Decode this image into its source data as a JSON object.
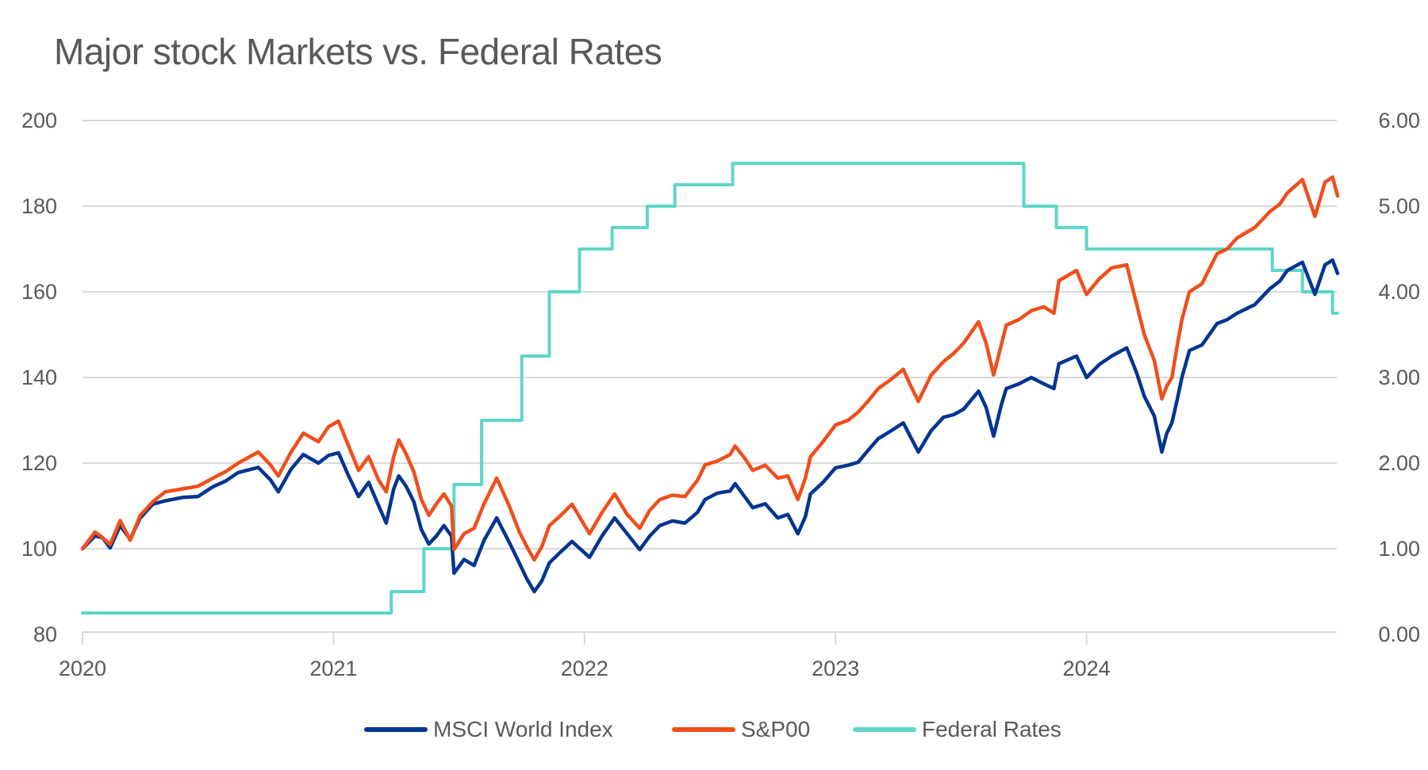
{
  "chart_data": {
    "type": "line",
    "title": "Major stock Markets vs. Federal Rates",
    "xlabel": "",
    "ylabel": "",
    "y2label": "",
    "xlim": [
      2020.0,
      2025.0
    ],
    "ylim": [
      80,
      200
    ],
    "y2lim": [
      0,
      6
    ],
    "grid": true,
    "legend_position": "bottom",
    "x_ticks": [
      {
        "value": 2020,
        "label": "2020"
      },
      {
        "value": 2021,
        "label": "2021"
      },
      {
        "value": 2022,
        "label": "2022"
      },
      {
        "value": 2023,
        "label": "2023"
      },
      {
        "value": 2024,
        "label": "2024"
      }
    ],
    "y_ticks": [
      {
        "value": 80,
        "label": "80"
      },
      {
        "value": 100,
        "label": "100"
      },
      {
        "value": 120,
        "label": "120"
      },
      {
        "value": 140,
        "label": "140"
      },
      {
        "value": 160,
        "label": "160"
      },
      {
        "value": 180,
        "label": "180"
      },
      {
        "value": 200,
        "label": "200"
      }
    ],
    "y2_ticks": [
      {
        "value": 0,
        "label": "0.00"
      },
      {
        "value": 1,
        "label": "1.00"
      },
      {
        "value": 2,
        "label": "2.00"
      },
      {
        "value": 3,
        "label": "3.00"
      },
      {
        "value": 4,
        "label": "4.00"
      },
      {
        "value": 5,
        "label": "5.00"
      },
      {
        "value": 6,
        "label": "6.00"
      }
    ],
    "series": [
      {
        "name": "MSCI World Index",
        "axis": "left",
        "color": "#003591",
        "step": false,
        "points": [
          [
            2020.0,
            100.0
          ],
          [
            2020.05,
            103.0
          ],
          [
            2020.08,
            102.6
          ],
          [
            2020.11,
            100.2
          ],
          [
            2020.15,
            105.4
          ],
          [
            2020.19,
            102.2
          ],
          [
            2020.23,
            107.2
          ],
          [
            2020.28,
            110.4
          ],
          [
            2020.33,
            111.2
          ],
          [
            2020.4,
            112.0
          ],
          [
            2020.46,
            112.2
          ],
          [
            2020.52,
            114.5
          ],
          [
            2020.57,
            115.8
          ],
          [
            2020.62,
            117.8
          ],
          [
            2020.7,
            119.0
          ],
          [
            2020.75,
            116.0
          ],
          [
            2020.78,
            113.3
          ],
          [
            2020.83,
            118.5
          ],
          [
            2020.88,
            122.0
          ],
          [
            2020.94,
            120.0
          ],
          [
            2020.98,
            121.8
          ],
          [
            2021.02,
            122.4
          ],
          [
            2021.06,
            117.0
          ],
          [
            2021.1,
            112.2
          ],
          [
            2021.14,
            115.5
          ],
          [
            2021.18,
            110.0
          ],
          [
            2021.21,
            106.0
          ],
          [
            2021.24,
            114.0
          ],
          [
            2021.26,
            117.0
          ],
          [
            2021.29,
            114.5
          ],
          [
            2021.32,
            111.0
          ],
          [
            2021.35,
            104.5
          ],
          [
            2021.38,
            101.1
          ],
          [
            2021.41,
            103.0
          ],
          [
            2021.44,
            105.4
          ],
          [
            2021.47,
            103.0
          ],
          [
            2021.48,
            94.3
          ],
          [
            2021.52,
            97.5
          ],
          [
            2021.56,
            96.1
          ],
          [
            2021.6,
            102.0
          ],
          [
            2021.65,
            107.2
          ],
          [
            2021.7,
            101.5
          ],
          [
            2021.74,
            96.7
          ],
          [
            2021.77,
            93.0
          ],
          [
            2021.8,
            90.0
          ],
          [
            2021.83,
            92.5
          ],
          [
            2021.86,
            96.7
          ],
          [
            2021.9,
            99.0
          ],
          [
            2021.95,
            101.7
          ],
          [
            2022.02,
            98.0
          ],
          [
            2022.07,
            103.0
          ],
          [
            2022.12,
            107.2
          ],
          [
            2022.17,
            103.5
          ],
          [
            2022.22,
            99.8
          ],
          [
            2022.26,
            103.0
          ],
          [
            2022.3,
            105.4
          ],
          [
            2022.35,
            106.5
          ],
          [
            2022.4,
            106.0
          ],
          [
            2022.45,
            108.5
          ],
          [
            2022.48,
            111.5
          ],
          [
            2022.53,
            113.0
          ],
          [
            2022.58,
            113.5
          ],
          [
            2022.6,
            115.2
          ],
          [
            2022.64,
            112.0
          ],
          [
            2022.67,
            109.6
          ],
          [
            2022.72,
            110.5
          ],
          [
            2022.77,
            107.2
          ],
          [
            2022.81,
            108.0
          ],
          [
            2022.85,
            103.5
          ],
          [
            2022.88,
            107.5
          ],
          [
            2022.9,
            112.8
          ],
          [
            2022.95,
            115.5
          ],
          [
            2023.0,
            118.9
          ],
          [
            2023.05,
            119.5
          ],
          [
            2023.09,
            120.2
          ],
          [
            2023.13,
            123.0
          ],
          [
            2023.17,
            125.7
          ],
          [
            2023.22,
            127.5
          ],
          [
            2023.27,
            129.4
          ],
          [
            2023.3,
            126.0
          ],
          [
            2023.33,
            122.6
          ],
          [
            2023.38,
            127.5
          ],
          [
            2023.43,
            130.7
          ],
          [
            2023.47,
            131.3
          ],
          [
            2023.51,
            132.6
          ],
          [
            2023.57,
            136.8
          ],
          [
            2023.6,
            133.0
          ],
          [
            2023.63,
            126.3
          ],
          [
            2023.66,
            133.5
          ],
          [
            2023.68,
            137.4
          ],
          [
            2023.73,
            138.5
          ],
          [
            2023.78,
            140.0
          ],
          [
            2023.83,
            138.5
          ],
          [
            2023.87,
            137.4
          ],
          [
            2023.89,
            143.2
          ],
          [
            2023.96,
            145.0
          ],
          [
            2024.0,
            140.0
          ],
          [
            2024.05,
            143.0
          ],
          [
            2024.1,
            145.0
          ],
          [
            2024.16,
            146.9
          ],
          [
            2024.2,
            141.0
          ],
          [
            2024.23,
            135.6
          ],
          [
            2024.27,
            131.0
          ],
          [
            2024.3,
            122.6
          ],
          [
            2024.32,
            127.0
          ],
          [
            2024.34,
            129.4
          ],
          [
            2024.36,
            134.5
          ],
          [
            2024.38,
            140.0
          ],
          [
            2024.41,
            146.3
          ],
          [
            2024.46,
            147.6
          ],
          [
            2024.52,
            152.6
          ],
          [
            2024.56,
            153.5
          ],
          [
            2024.6,
            155.0
          ],
          [
            2024.67,
            157.0
          ],
          [
            2024.73,
            160.7
          ],
          [
            2024.77,
            162.5
          ],
          [
            2024.8,
            165.0
          ],
          [
            2024.86,
            166.9
          ],
          [
            2024.91,
            159.4
          ],
          [
            2024.95,
            166.3
          ],
          [
            2024.98,
            167.4
          ],
          [
            2025.0,
            164.3
          ]
        ]
      },
      {
        "name": "S&P00",
        "axis": "left",
        "color": "#F04E1B",
        "step": false,
        "points": [
          [
            2020.0,
            100.0
          ],
          [
            2020.05,
            103.9
          ],
          [
            2020.08,
            102.6
          ],
          [
            2020.11,
            101.0
          ],
          [
            2020.15,
            106.6
          ],
          [
            2020.19,
            102.0
          ],
          [
            2020.23,
            107.8
          ],
          [
            2020.28,
            111.0
          ],
          [
            2020.33,
            113.3
          ],
          [
            2020.4,
            114.0
          ],
          [
            2020.46,
            114.6
          ],
          [
            2020.52,
            116.5
          ],
          [
            2020.57,
            118.0
          ],
          [
            2020.62,
            120.0
          ],
          [
            2020.7,
            122.6
          ],
          [
            2020.75,
            119.5
          ],
          [
            2020.78,
            117.0
          ],
          [
            2020.83,
            122.5
          ],
          [
            2020.88,
            127.0
          ],
          [
            2020.94,
            125.0
          ],
          [
            2020.98,
            128.5
          ],
          [
            2021.02,
            129.8
          ],
          [
            2021.06,
            124.0
          ],
          [
            2021.1,
            118.3
          ],
          [
            2021.14,
            121.5
          ],
          [
            2021.18,
            116.0
          ],
          [
            2021.21,
            113.3
          ],
          [
            2021.24,
            121.5
          ],
          [
            2021.26,
            125.4
          ],
          [
            2021.29,
            122.0
          ],
          [
            2021.32,
            118.0
          ],
          [
            2021.35,
            111.5
          ],
          [
            2021.38,
            107.8
          ],
          [
            2021.41,
            110.5
          ],
          [
            2021.44,
            112.8
          ],
          [
            2021.47,
            110.0
          ],
          [
            2021.48,
            99.8
          ],
          [
            2021.52,
            103.5
          ],
          [
            2021.56,
            104.8
          ],
          [
            2021.6,
            110.5
          ],
          [
            2021.65,
            116.5
          ],
          [
            2021.7,
            110.0
          ],
          [
            2021.74,
            104.0
          ],
          [
            2021.77,
            100.5
          ],
          [
            2021.8,
            97.4
          ],
          [
            2021.83,
            100.5
          ],
          [
            2021.86,
            105.4
          ],
          [
            2021.9,
            107.5
          ],
          [
            2021.95,
            110.4
          ],
          [
            2022.02,
            103.5
          ],
          [
            2022.07,
            108.5
          ],
          [
            2022.12,
            112.8
          ],
          [
            2022.17,
            108.0
          ],
          [
            2022.22,
            104.8
          ],
          [
            2022.26,
            109.0
          ],
          [
            2022.3,
            111.5
          ],
          [
            2022.35,
            112.5
          ],
          [
            2022.4,
            112.2
          ],
          [
            2022.45,
            116.0
          ],
          [
            2022.48,
            119.6
          ],
          [
            2022.53,
            120.5
          ],
          [
            2022.58,
            122.0
          ],
          [
            2022.6,
            124.0
          ],
          [
            2022.64,
            121.0
          ],
          [
            2022.67,
            118.3
          ],
          [
            2022.72,
            119.5
          ],
          [
            2022.77,
            116.5
          ],
          [
            2022.81,
            117.0
          ],
          [
            2022.85,
            111.5
          ],
          [
            2022.88,
            116.5
          ],
          [
            2022.9,
            121.5
          ],
          [
            2022.95,
            125.0
          ],
          [
            2023.0,
            128.9
          ],
          [
            2023.05,
            130.0
          ],
          [
            2023.09,
            131.9
          ],
          [
            2023.13,
            134.5
          ],
          [
            2023.17,
            137.4
          ],
          [
            2023.22,
            139.5
          ],
          [
            2023.27,
            141.9
          ],
          [
            2023.3,
            138.0
          ],
          [
            2023.33,
            134.4
          ],
          [
            2023.38,
            140.5
          ],
          [
            2023.43,
            143.7
          ],
          [
            2023.47,
            145.6
          ],
          [
            2023.51,
            148.0
          ],
          [
            2023.57,
            153.0
          ],
          [
            2023.6,
            148.0
          ],
          [
            2023.63,
            140.6
          ],
          [
            2023.66,
            147.5
          ],
          [
            2023.68,
            152.2
          ],
          [
            2023.73,
            153.5
          ],
          [
            2023.78,
            155.6
          ],
          [
            2023.83,
            156.5
          ],
          [
            2023.87,
            155.0
          ],
          [
            2023.89,
            162.6
          ],
          [
            2023.96,
            165.0
          ],
          [
            2024.0,
            159.4
          ],
          [
            2024.05,
            163.0
          ],
          [
            2024.1,
            165.6
          ],
          [
            2024.16,
            166.3
          ],
          [
            2024.2,
            157.0
          ],
          [
            2024.23,
            150.0
          ],
          [
            2024.27,
            144.0
          ],
          [
            2024.3,
            135.0
          ],
          [
            2024.32,
            138.0
          ],
          [
            2024.34,
            140.0
          ],
          [
            2024.36,
            147.0
          ],
          [
            2024.38,
            153.5
          ],
          [
            2024.41,
            160.0
          ],
          [
            2024.46,
            161.9
          ],
          [
            2024.52,
            168.9
          ],
          [
            2024.56,
            170.0
          ],
          [
            2024.6,
            172.6
          ],
          [
            2024.67,
            175.0
          ],
          [
            2024.73,
            178.7
          ],
          [
            2024.77,
            180.5
          ],
          [
            2024.8,
            183.1
          ],
          [
            2024.86,
            186.2
          ],
          [
            2024.91,
            177.6
          ],
          [
            2024.95,
            185.6
          ],
          [
            2024.98,
            186.8
          ],
          [
            2025.0,
            182.4
          ]
        ]
      },
      {
        "name": "Federal Rates",
        "axis": "right",
        "color": "#5DD6C8",
        "step": true,
        "points": [
          [
            2020.0,
            0.25
          ],
          [
            2021.23,
            0.5
          ],
          [
            2021.36,
            1.0
          ],
          [
            2021.48,
            1.75
          ],
          [
            2021.59,
            2.5
          ],
          [
            2021.75,
            3.25
          ],
          [
            2021.86,
            4.0
          ],
          [
            2021.98,
            4.5
          ],
          [
            2022.11,
            4.75
          ],
          [
            2022.25,
            5.0
          ],
          [
            2022.36,
            5.25
          ],
          [
            2022.59,
            5.5
          ],
          [
            2023.75,
            5.0
          ],
          [
            2023.88,
            4.75
          ],
          [
            2024.0,
            4.5
          ],
          [
            2024.74,
            4.25
          ],
          [
            2024.86,
            4.0
          ],
          [
            2024.98,
            3.75
          ],
          [
            2025.0,
            3.75
          ]
        ]
      }
    ]
  }
}
